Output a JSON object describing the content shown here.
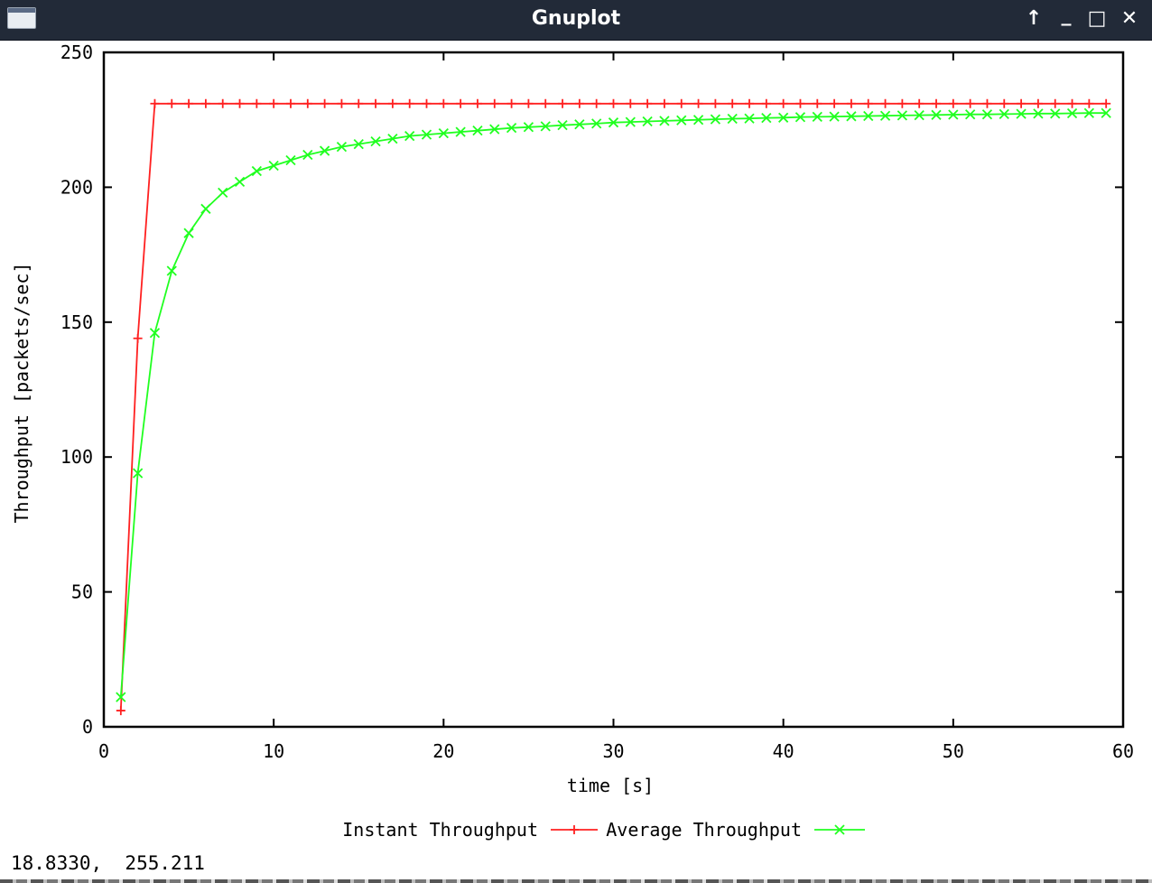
{
  "window": {
    "title": "Gnuplot",
    "app_icon": "window-icon",
    "buttons": [
      {
        "name": "raise-button",
        "icon": "arrow-up-icon",
        "glyph": "↑"
      },
      {
        "name": "minimize-button",
        "icon": "minimize-icon",
        "glyph": "_"
      },
      {
        "name": "maximize-button",
        "icon": "maximize-icon",
        "glyph": "□"
      },
      {
        "name": "close-button",
        "icon": "close-icon",
        "glyph": "✕"
      }
    ]
  },
  "status": {
    "mouse_readout": "18.8330,  255.211"
  },
  "colors": {
    "titlebar": "#222a38",
    "instant": "#ff2020",
    "average": "#20ff20"
  },
  "chart_data": {
    "type": "line",
    "xlabel": "time [s]",
    "ylabel": "Throughput [packets/sec]",
    "xlim": [
      0,
      60
    ],
    "ylim": [
      0,
      250
    ],
    "x_ticks": [
      "0",
      "10",
      "20",
      "30",
      "40",
      "50",
      "60"
    ],
    "y_ticks": [
      "0",
      "50",
      "100",
      "150",
      "200",
      "250"
    ],
    "grid": false,
    "legend_position": "bottom-center",
    "series": [
      {
        "name": "Instant Throughput",
        "color": "#ff2020",
        "marker": "plus",
        "points": [
          [
            1,
            6
          ],
          [
            2,
            144
          ],
          [
            3,
            231
          ],
          [
            4,
            231
          ],
          [
            5,
            231
          ],
          [
            6,
            231
          ],
          [
            7,
            231
          ],
          [
            8,
            231
          ],
          [
            9,
            231
          ],
          [
            10,
            231
          ],
          [
            11,
            231
          ],
          [
            12,
            231
          ],
          [
            13,
            231
          ],
          [
            14,
            231
          ],
          [
            15,
            231
          ],
          [
            16,
            231
          ],
          [
            17,
            231
          ],
          [
            18,
            231
          ],
          [
            19,
            231
          ],
          [
            20,
            231
          ],
          [
            21,
            231
          ],
          [
            22,
            231
          ],
          [
            23,
            231
          ],
          [
            24,
            231
          ],
          [
            25,
            231
          ],
          [
            26,
            231
          ],
          [
            27,
            231
          ],
          [
            28,
            231
          ],
          [
            29,
            231
          ],
          [
            30,
            231
          ],
          [
            31,
            231
          ],
          [
            32,
            231
          ],
          [
            33,
            231
          ],
          [
            34,
            231
          ],
          [
            35,
            231
          ],
          [
            36,
            231
          ],
          [
            37,
            231
          ],
          [
            38,
            231
          ],
          [
            39,
            231
          ],
          [
            40,
            231
          ],
          [
            41,
            231
          ],
          [
            42,
            231
          ],
          [
            43,
            231
          ],
          [
            44,
            231
          ],
          [
            45,
            231
          ],
          [
            46,
            231
          ],
          [
            47,
            231
          ],
          [
            48,
            231
          ],
          [
            49,
            231
          ],
          [
            50,
            231
          ],
          [
            51,
            231
          ],
          [
            52,
            231
          ],
          [
            53,
            231
          ],
          [
            54,
            231
          ],
          [
            55,
            231
          ],
          [
            56,
            231
          ],
          [
            57,
            231
          ],
          [
            58,
            231
          ],
          [
            59,
            231
          ]
        ]
      },
      {
        "name": "Average Throughput",
        "color": "#20ff20",
        "marker": "cross",
        "points": [
          [
            1,
            11
          ],
          [
            2,
            94
          ],
          [
            3,
            146
          ],
          [
            4,
            169
          ],
          [
            5,
            183
          ],
          [
            6,
            192
          ],
          [
            7,
            198
          ],
          [
            8,
            202
          ],
          [
            9,
            206
          ],
          [
            10,
            208
          ],
          [
            11,
            210
          ],
          [
            12,
            212
          ],
          [
            13,
            213.5
          ],
          [
            14,
            215
          ],
          [
            15,
            216
          ],
          [
            16,
            217
          ],
          [
            17,
            218
          ],
          [
            18,
            219
          ],
          [
            19,
            219.5
          ],
          [
            20,
            220
          ],
          [
            21,
            220.5
          ],
          [
            22,
            221
          ],
          [
            23,
            221.5
          ],
          [
            24,
            222
          ],
          [
            25,
            222.3
          ],
          [
            26,
            222.6
          ],
          [
            27,
            223
          ],
          [
            28,
            223.3
          ],
          [
            29,
            223.6
          ],
          [
            30,
            224
          ],
          [
            31,
            224.2
          ],
          [
            32,
            224.4
          ],
          [
            33,
            224.6
          ],
          [
            34,
            224.8
          ],
          [
            35,
            225
          ],
          [
            36,
            225.2
          ],
          [
            37,
            225.4
          ],
          [
            38,
            225.5
          ],
          [
            39,
            225.7
          ],
          [
            40,
            225.8
          ],
          [
            41,
            226
          ],
          [
            42,
            226.1
          ],
          [
            43,
            226.2
          ],
          [
            44,
            226.3
          ],
          [
            45,
            226.4
          ],
          [
            46,
            226.5
          ],
          [
            47,
            226.6
          ],
          [
            48,
            226.7
          ],
          [
            49,
            226.8
          ],
          [
            50,
            226.9
          ],
          [
            51,
            227
          ],
          [
            52,
            227
          ],
          [
            53,
            227.1
          ],
          [
            54,
            227.2
          ],
          [
            55,
            227.3
          ],
          [
            56,
            227.3
          ],
          [
            57,
            227.4
          ],
          [
            58,
            227.5
          ],
          [
            59,
            227.5
          ]
        ]
      }
    ]
  }
}
